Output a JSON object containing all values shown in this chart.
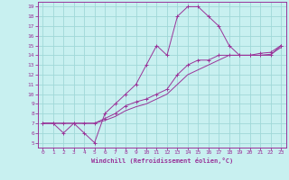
{
  "xlabel": "Windchill (Refroidissement éolien,°C)",
  "bg_color": "#c8f0f0",
  "grid_color": "#a0d8d8",
  "line_color": "#993399",
  "spine_color": "#993399",
  "xlim": [
    -0.5,
    23.5
  ],
  "ylim": [
    4.5,
    19.5
  ],
  "xticks": [
    0,
    1,
    2,
    3,
    4,
    5,
    6,
    7,
    8,
    9,
    10,
    11,
    12,
    13,
    14,
    15,
    16,
    17,
    18,
    19,
    20,
    21,
    22,
    23
  ],
  "yticks": [
    5,
    6,
    7,
    8,
    9,
    10,
    11,
    12,
    13,
    14,
    15,
    16,
    17,
    18,
    19
  ],
  "curve1_x": [
    0,
    1,
    2,
    3,
    4,
    5,
    6,
    7,
    8,
    9,
    10,
    11,
    12,
    13,
    14,
    15,
    16,
    17,
    18,
    19,
    20,
    21,
    22,
    23
  ],
  "curve1_y": [
    7,
    7,
    6,
    7,
    6,
    5,
    8,
    9,
    10,
    11,
    13,
    15,
    14,
    18,
    19,
    19,
    18,
    17,
    15,
    14,
    14,
    14,
    14,
    15
  ],
  "curve2_x": [
    0,
    1,
    2,
    3,
    4,
    5,
    6,
    7,
    8,
    9,
    10,
    11,
    12,
    13,
    14,
    15,
    16,
    17,
    18,
    19,
    20,
    21,
    22,
    23
  ],
  "curve2_y": [
    7,
    7,
    7,
    7,
    7,
    7,
    7.5,
    8.0,
    8.8,
    9.2,
    9.5,
    10.0,
    10.5,
    12.0,
    13.0,
    13.5,
    13.5,
    14.0,
    14.0,
    14.0,
    14.0,
    14.2,
    14.3,
    15.0
  ],
  "curve3_x": [
    0,
    1,
    2,
    3,
    4,
    5,
    6,
    7,
    8,
    9,
    10,
    11,
    12,
    13,
    14,
    15,
    16,
    17,
    18,
    19,
    20,
    21,
    22,
    23
  ],
  "curve3_y": [
    7,
    7,
    7,
    7,
    7,
    7,
    7.3,
    7.7,
    8.3,
    8.7,
    9.0,
    9.5,
    10.0,
    11.0,
    12.0,
    12.5,
    13.0,
    13.5,
    14.0,
    14.0,
    14.0,
    14.0,
    14.1,
    14.8
  ]
}
